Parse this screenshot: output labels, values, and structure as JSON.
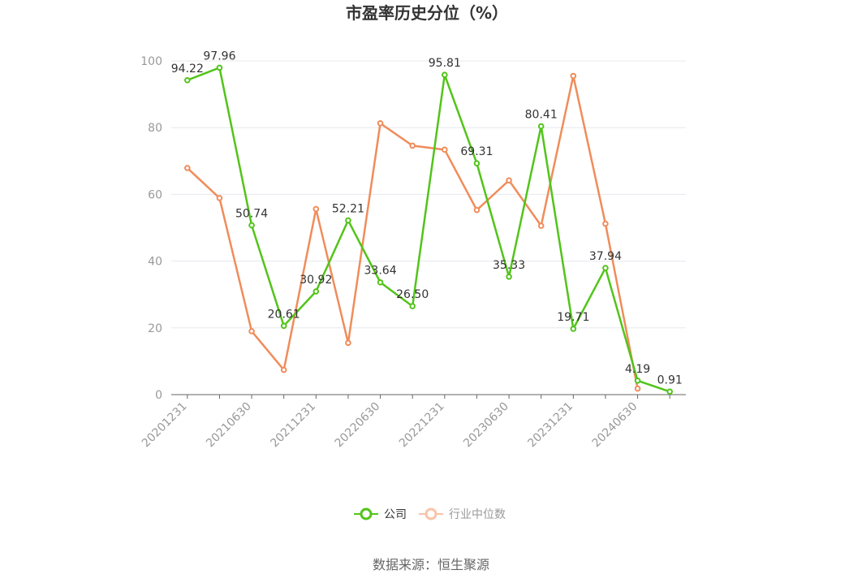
{
  "chart_data": {
    "type": "line",
    "title": "市盈率历史分位（%）",
    "ylim": [
      0,
      100
    ],
    "yticks": [
      0,
      20,
      40,
      60,
      80,
      100
    ],
    "x": [
      "20201231",
      "20210331",
      "20210630",
      "20210930",
      "20211231",
      "20220331",
      "20220630",
      "20220930",
      "20221231",
      "20230331",
      "20230630",
      "20230930",
      "20231231",
      "20240331",
      "20240630",
      "20240930"
    ],
    "xtick_labels": [
      "20201231",
      "20210630",
      "20211231",
      "20220630",
      "20221231",
      "20230630",
      "20231231",
      "20240630"
    ],
    "grid": true,
    "legend_position": "bottom",
    "series": [
      {
        "name": "公司",
        "color": "#52c41a",
        "values": [
          94.22,
          97.96,
          50.74,
          20.61,
          30.92,
          52.21,
          33.64,
          26.5,
          95.81,
          69.31,
          35.33,
          80.41,
          19.71,
          37.94,
          4.19,
          0.91
        ],
        "labels": [
          "94.22",
          "97.96",
          "50.74",
          "20.61",
          "30.92",
          "52.21",
          "33.64",
          "26.50",
          "95.81",
          "69.31",
          "35.33",
          "80.41",
          "19.71",
          "37.94",
          "4.19",
          "0.91"
        ]
      },
      {
        "name": "行业中位数",
        "color": "#f08c5a",
        "values": [
          67.9,
          58.9,
          19.0,
          7.4,
          55.6,
          15.5,
          81.3,
          74.6,
          73.4,
          55.3,
          64.2,
          50.6,
          95.5,
          51.2,
          1.8,
          null
        ]
      }
    ],
    "source": "数据来源：恒生聚源"
  }
}
